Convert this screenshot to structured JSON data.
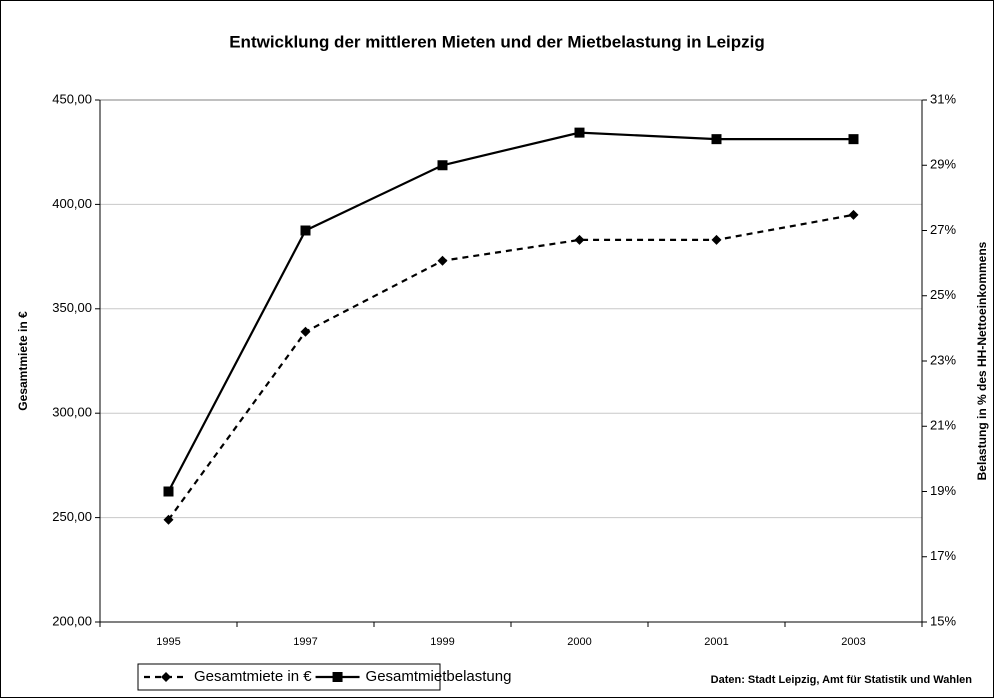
{
  "chart_data": {
    "type": "line",
    "title": "Entwicklung der mittleren Mieten und der Mietbelastung in Leipzig",
    "ylabel": "Gesamtmiete in €",
    "y2label": "Belastung in % des HH-Nettoeinkommens",
    "source": "Daten: Stadt Leipzig, Amt für Statistik und Wahlen",
    "categories": [
      "1995",
      "1997",
      "1999",
      "2000",
      "2001",
      "2003"
    ],
    "series": [
      {
        "name": "Gesamtmiete in €",
        "color": "#000000",
        "dash": true,
        "marker": "diamond",
        "values": [
          249,
          339,
          373,
          383,
          383,
          395
        ]
      },
      {
        "name": "Gesamtmietbelastung",
        "color": "#000000",
        "dash": false,
        "marker": "square",
        "axis": "y2",
        "values": [
          19.0,
          27.0,
          29.0,
          30.0,
          29.8,
          29.8
        ]
      }
    ],
    "ylim": [
      200,
      450
    ],
    "yticks": [
      {
        "value": 200,
        "label": "200,00"
      },
      {
        "value": 250,
        "label": "250,00"
      },
      {
        "value": 300,
        "label": "300,00"
      },
      {
        "value": 350,
        "label": "350,00"
      },
      {
        "value": 400,
        "label": "400,00"
      },
      {
        "value": 450,
        "label": "450,00"
      }
    ],
    "y2lim": [
      15,
      31
    ],
    "y2ticks": [
      {
        "value": 15,
        "label": "15%"
      },
      {
        "value": 17,
        "label": "17%"
      },
      {
        "value": 19,
        "label": "19%"
      },
      {
        "value": 21,
        "label": "21%"
      },
      {
        "value": 23,
        "label": "23%"
      },
      {
        "value": 25,
        "label": "25%"
      },
      {
        "value": 27,
        "label": "27%"
      },
      {
        "value": 29,
        "label": "29%"
      },
      {
        "value": 31,
        "label": "31%"
      }
    ],
    "grid": true,
    "legend": "bottom-left"
  }
}
